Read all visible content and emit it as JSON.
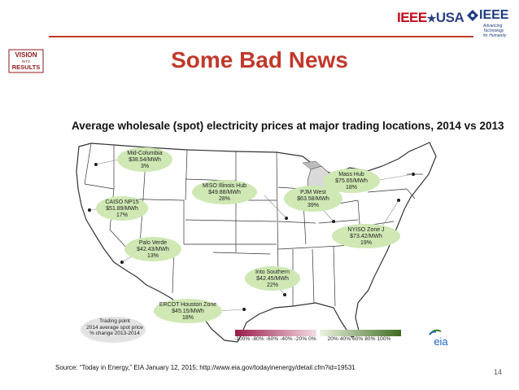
{
  "header": {
    "ieee_usa_logo": "IEEE★USA",
    "ieee_logo_word": "IEEE",
    "ieee_tagline": "Advancing Technology for Humanity",
    "vision_logo": "VISION INTO RESULTS",
    "accent_color": "#c0392b"
  },
  "slide": {
    "title": "Some Bad News",
    "page_number": "14",
    "source": "Source:  “Today in Energy,” EIA January 12, 2015; http://www.eia.gov/todayinenergy/detail.cfm?id=19531"
  },
  "map": {
    "title": "Average wholesale (spot) electricity prices at major trading locations, 2014 vs 2013",
    "hubs": [
      {
        "name": "Mid-Columbia",
        "price": "$38.54/MWh",
        "change": "3%"
      },
      {
        "name": "CAISO NP15",
        "price": "$51.89/MWh",
        "change": "17%"
      },
      {
        "name": "Palo Verde",
        "price": "$42.43/MWh",
        "change": "13%"
      },
      {
        "name": "MISO Illinois Hub",
        "price": "$49.88/MWh",
        "change": "28%"
      },
      {
        "name": "PJM West",
        "price": "$63.58/MWh",
        "change": "39%"
      },
      {
        "name": "Mass Hub",
        "price": "$75.65/MWh",
        "change": "18%"
      },
      {
        "name": "NYISO Zone J",
        "price": "$73.42/MWh",
        "change": "19%"
      },
      {
        "name": "Into Southern",
        "price": "$42.45/MWh",
        "change": "22%"
      },
      {
        "name": "ERCOT Houston Zone",
        "price": "$45.15/MWh",
        "change": "18%"
      }
    ],
    "legend": {
      "lines": [
        "Trading point",
        "2014 average spot price",
        "% change 2013-2014"
      ]
    },
    "scale_labels": [
      "-100%",
      "-80%",
      "-60%",
      "-40%",
      "-20%",
      "0%",
      "20%",
      "40%",
      "60%",
      "80%",
      "100%"
    ],
    "eia_logo": "eia",
    "colors": {
      "bubble": "#cfe8b4",
      "negative_end": "#9b1b4b",
      "positive_end": "#3e6b1f",
      "states": "#ffffff",
      "border": "#333333"
    }
  }
}
